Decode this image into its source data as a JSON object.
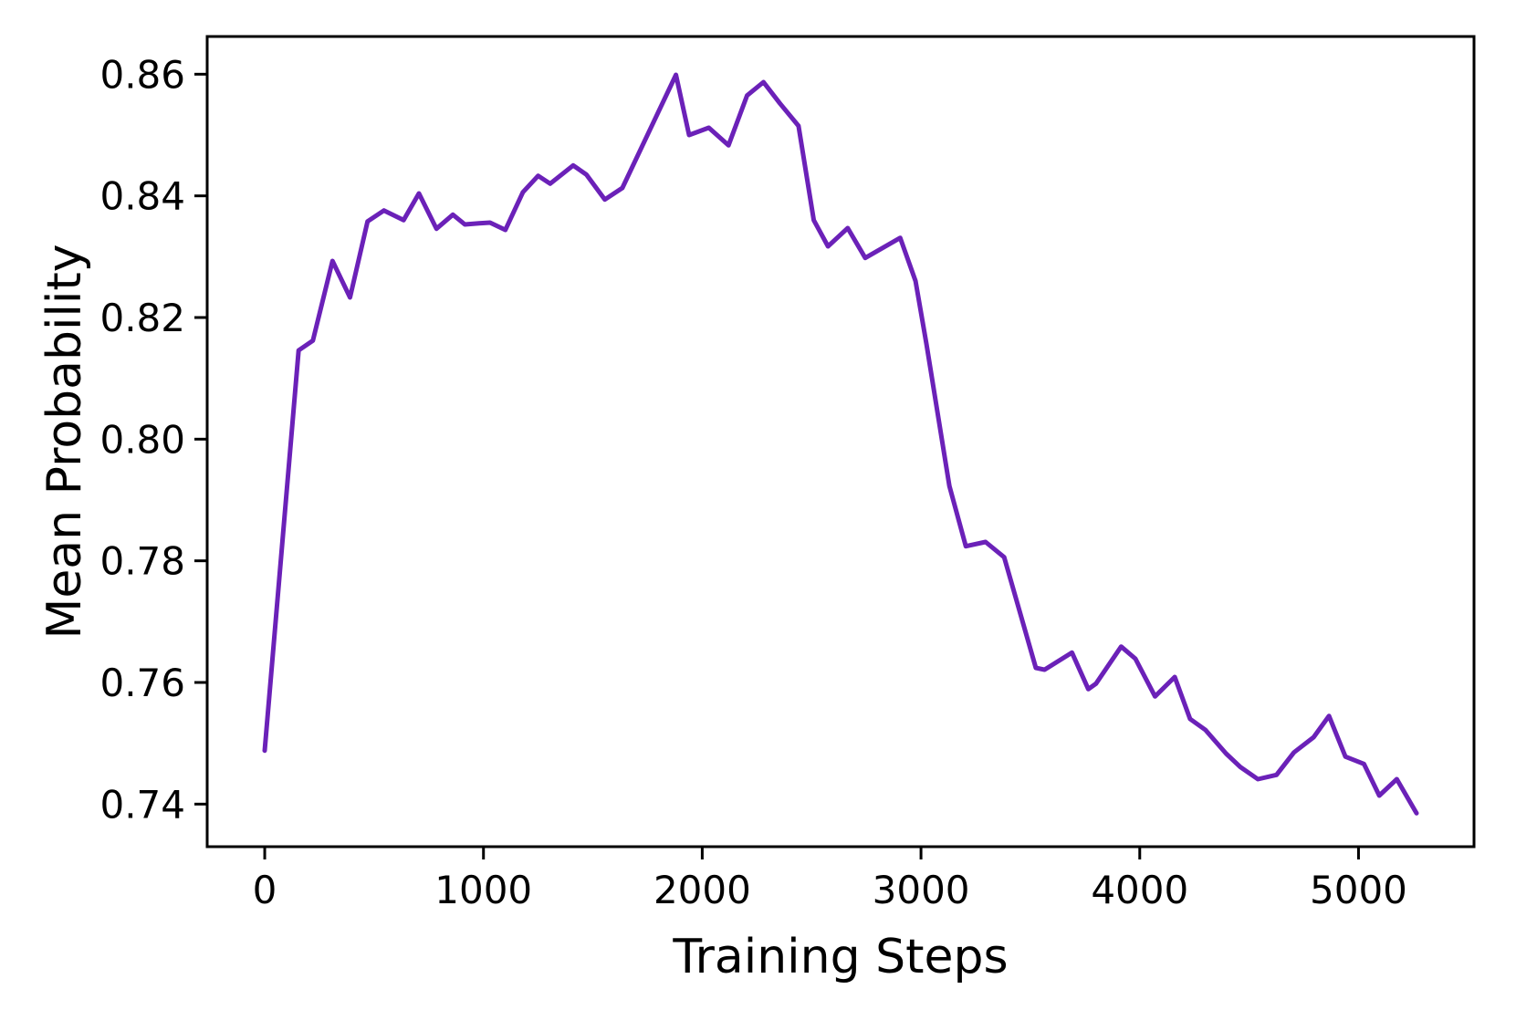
{
  "page": {
    "background": "#ffffff"
  },
  "chart_data": {
    "type": "line",
    "title": "",
    "xlabel": "Training Steps",
    "ylabel": "Mean Probability",
    "x_tick_values": [
      0,
      1000,
      2000,
      3000,
      4000,
      5000
    ],
    "x_tick_labels": [
      "0",
      "1000",
      "2000",
      "3000",
      "4000",
      "5000"
    ],
    "y_tick_values": [
      0.74,
      0.76,
      0.78,
      0.8,
      0.82,
      0.84,
      0.86
    ],
    "y_tick_labels": [
      "0.74",
      "0.76",
      "0.78",
      "0.80",
      "0.82",
      "0.84",
      "0.86"
    ],
    "xlim": [
      -263,
      5528
    ],
    "ylim": [
      0.733,
      0.8662
    ],
    "grid": false,
    "legend_position": "none",
    "line_color": "#6b21b8",
    "axis_color": "#000000",
    "line_width": 5,
    "series": [
      {
        "name": "Mean Probability",
        "x": [
          0,
          155,
          220,
          310,
          390,
          470,
          545,
          635,
          705,
          785,
          860,
          915,
          980,
          1030,
          1100,
          1180,
          1250,
          1305,
          1410,
          1470,
          1555,
          1635,
          1880,
          1940,
          2030,
          2120,
          2205,
          2280,
          2355,
          2440,
          2510,
          2575,
          2665,
          2745,
          2905,
          2975,
          3025,
          3130,
          3205,
          3295,
          3380,
          3525,
          3565,
          3690,
          3765,
          3800,
          3915,
          3980,
          4070,
          4160,
          4230,
          4300,
          4395,
          4460,
          4540,
          4625,
          4705,
          4795,
          4865,
          4940,
          5025,
          5095,
          5175,
          5265
        ],
        "y": [
          0.7488,
          0.8146,
          0.8162,
          0.8293,
          0.8233,
          0.8358,
          0.8376,
          0.836,
          0.8404,
          0.8346,
          0.8369,
          0.8353,
          0.8355,
          0.8356,
          0.8344,
          0.8406,
          0.8433,
          0.842,
          0.845,
          0.8435,
          0.8394,
          0.8413,
          0.8599,
          0.85,
          0.8512,
          0.8483,
          0.8565,
          0.8587,
          0.8552,
          0.8515,
          0.836,
          0.8317,
          0.8347,
          0.8298,
          0.8331,
          0.826,
          0.8156,
          0.7923,
          0.7824,
          0.7831,
          0.7806,
          0.7624,
          0.7621,
          0.7649,
          0.7589,
          0.7598,
          0.7659,
          0.7639,
          0.7577,
          0.7609,
          0.754,
          0.7522,
          0.7483,
          0.7461,
          0.7441,
          0.7448,
          0.7485,
          0.751,
          0.7545,
          0.7478,
          0.7466,
          0.7414,
          0.7441,
          0.7385
        ]
      }
    ]
  }
}
